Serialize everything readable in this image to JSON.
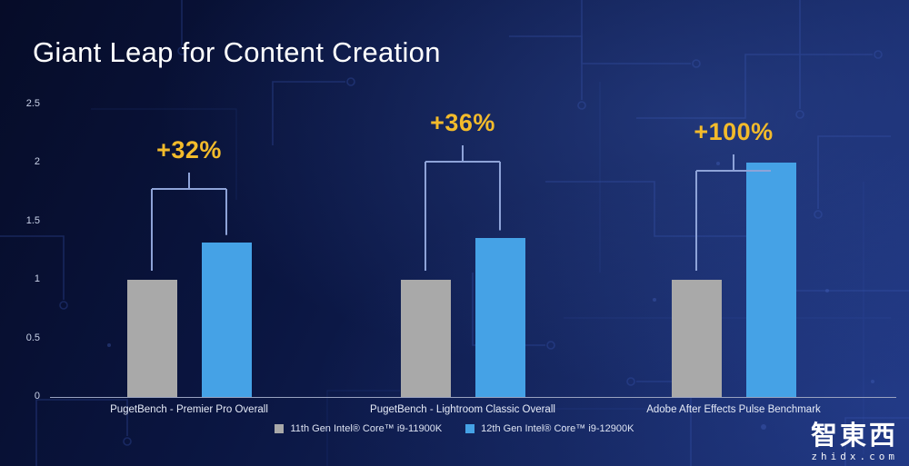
{
  "title": "Giant Leap for Content Creation",
  "chart_data": {
    "type": "bar",
    "title": "Giant Leap for Content Creation",
    "categories": [
      "PugetBench - Premier Pro Overall",
      "PugetBench - Lightroom Classic Overall",
      "Adobe After Effects Pulse Benchmark"
    ],
    "series": [
      {
        "name": "11th Gen Intel® Core™ i9-11900K",
        "color": "#a9a9a9",
        "values": [
          1,
          1,
          1
        ]
      },
      {
        "name": "12th Gen Intel® Core™ i9-12900K",
        "color": "#45a2e6",
        "values": [
          1.32,
          1.36,
          2.0
        ]
      }
    ],
    "annotations": [
      "+32%",
      "+36%",
      "+100%"
    ],
    "xlabel": "",
    "ylabel": "",
    "ylim": [
      0,
      2.5
    ],
    "yticks": [
      "0",
      "0.5",
      "1",
      "1.5",
      "2",
      "2.5"
    ],
    "grid": false,
    "legend_position": "bottom"
  },
  "legend": {
    "items": [
      {
        "label": "11th Gen Intel® Core™ i9-11900K",
        "color": "#a9a9a9"
      },
      {
        "label": "12th Gen Intel® Core™ i9-12900K",
        "color": "#45a2e6"
      }
    ]
  },
  "watermark": {
    "logo_text": "智東西",
    "url_text": "zhidx.com"
  },
  "colors": {
    "annotation": "#f3bb2b",
    "bracket": "#8ea3d8",
    "bar_gray": "#a9a9a9",
    "bar_blue": "#45a2e6",
    "background": "#0a1540",
    "title_text": "#ffffff"
  }
}
